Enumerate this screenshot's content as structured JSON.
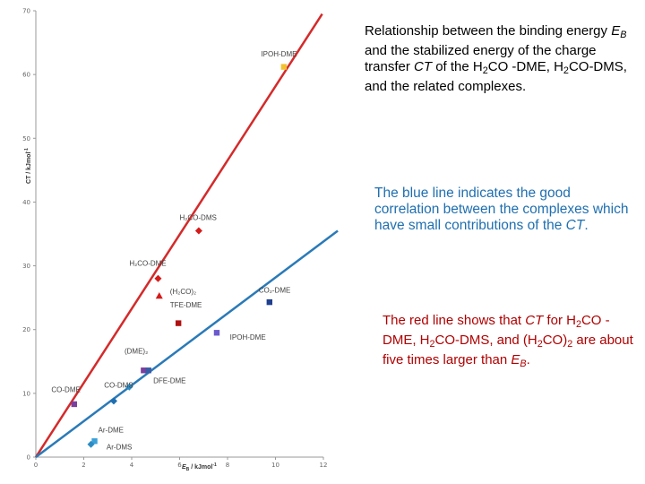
{
  "chart_data": {
    "type": "scatter",
    "xlabel": "E",
    "xlabel_sub": "B",
    "xlabel_unit": " / kJmol",
    "xlabel_sup": "-1",
    "ylabel": "CT / kJmol",
    "ylabel_sup": "-1",
    "xlim": [
      0,
      12
    ],
    "ylim": [
      0,
      70
    ],
    "x_ticks": [
      "0",
      "2",
      "4",
      "6",
      "8",
      "10",
      "12"
    ],
    "y_ticks": [
      "0",
      "10",
      "20",
      "30",
      "40",
      "50",
      "60",
      "70"
    ],
    "grid": false,
    "points": [
      {
        "label": "IPOH-DME",
        "x": 10.35,
        "y": 61.2,
        "color": "#f2c12e",
        "shape": "square"
      },
      {
        "label": "H2CO-DMS",
        "x": 6.8,
        "y": 35.5,
        "color": "#d61a1a",
        "shape": "diamond"
      },
      {
        "label": "H2CO-DME",
        "x": 5.1,
        "y": 28.0,
        "color": "#d61a1a",
        "shape": "diamond"
      },
      {
        "label": "(H2CO)2",
        "x": 5.15,
        "y": 25.3,
        "color": "#d61a1a",
        "shape": "triangle"
      },
      {
        "label": "TFE-DME",
        "x": 5.95,
        "y": 21.0,
        "color": "#b01010",
        "shape": "square"
      },
      {
        "label": "CO2-DME",
        "x": 9.75,
        "y": 24.3,
        "color": "#1f3f8f",
        "shape": "square"
      },
      {
        "label": "IPOH-DME",
        "x": 7.55,
        "y": 19.5,
        "color": "#6a5acd",
        "shape": "square"
      },
      {
        "label": "(DME)2",
        "x": 4.5,
        "y": 13.6,
        "color": "#7b3f9e",
        "shape": "square"
      },
      {
        "label": "DFE-DME",
        "x": 4.7,
        "y": 13.6,
        "color": "#3b5ba5",
        "shape": "square"
      },
      {
        "label": "CO-DMS",
        "x": 3.9,
        "y": 11.0,
        "color": "#2b8cc4",
        "shape": "diamond"
      },
      {
        "label": "CO-DME",
        "x": 1.6,
        "y": 8.3,
        "color": "#7b3f9e",
        "shape": "square"
      },
      {
        "label": "",
        "x": 3.25,
        "y": 8.8,
        "color": "#1f6fb0",
        "shape": "diamond"
      },
      {
        "label": "Ar-DME",
        "x": 2.45,
        "y": 2.5,
        "color": "#3aa0d8",
        "shape": "square"
      },
      {
        "label": "Ar-DMS",
        "x": 2.3,
        "y": 2.0,
        "color": "#2b8cc4",
        "shape": "diamond"
      }
    ],
    "labels": [
      {
        "text": "IPOH-DME",
        "x": 9.4,
        "y": 62.8
      },
      {
        "text": "H₂CO-DMS",
        "x": 6.0,
        "y": 37.2
      },
      {
        "text": "H₂CO-DME",
        "x": 3.9,
        "y": 30.0
      },
      {
        "text": "(H₂CO)₂",
        "x": 5.6,
        "y": 25.6
      },
      {
        "text": "TFE-DME",
        "x": 5.6,
        "y": 23.5
      },
      {
        "text": "CO₂-DME",
        "x": 9.3,
        "y": 25.8
      },
      {
        "text": "IPOH-DME",
        "x": 8.1,
        "y": 18.4
      },
      {
        "text": "(DME)₂",
        "x": 3.7,
        "y": 16.2
      },
      {
        "text": "DFE-DME",
        "x": 4.9,
        "y": 11.6
      },
      {
        "text": "CO-DMS",
        "x": 2.85,
        "y": 10.9
      },
      {
        "text": "CO-DME",
        "x": 0.65,
        "y": 10.2
      },
      {
        "text": "Ar-DME",
        "x": 2.6,
        "y": 3.9
      },
      {
        "text": "Ar-DMS",
        "x": 2.95,
        "y": 1.2
      }
    ],
    "lines": [
      {
        "name": "red",
        "color": "#d42a2a",
        "from": [
          0,
          0
        ],
        "to": [
          11.95,
          69.5
        ]
      },
      {
        "name": "blue",
        "color": "#2a7ab8",
        "from": [
          0,
          0
        ],
        "to": [
          12.6,
          35.5
        ]
      }
    ]
  },
  "notes": {
    "title_a": "Relationship between the binding energy ",
    "title_e": "E",
    "title_b": "B",
    "title_c": " and the stabilized energy of the charge transfer ",
    "title_ct": "CT",
    "title_d": " of the H",
    "title_2": "2",
    "title_f": "CO -DME, H",
    "title_2b": "2",
    "title_g": "CO-DMS, and the related complexes.",
    "blue_a": "The blue line indicates the good correlation between the complexes which have small contributions of the ",
    "blue_ct": "CT",
    "blue_b": ".",
    "red_a": "The red line shows that ",
    "red_ct": "CT",
    "red_b": " for H",
    "red_2a": "2",
    "red_c": "CO -DME, H",
    "red_2b": "2",
    "red_d": "CO-DMS, and (H",
    "red_2c": "2",
    "red_e": "CO)",
    "red_2d": "2",
    "red_f": " are about five times larger than ",
    "red_e2": "E",
    "red_b2": "B",
    "red_g": "."
  }
}
